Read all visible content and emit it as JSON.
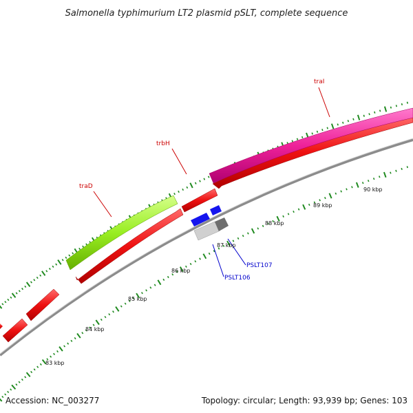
{
  "title": "Salmonella typhimurium LT2 plasmid pSLT, complete sequence",
  "footer": {
    "accession": "Accession: NC_003277",
    "summary": "Topology: circular; Length: 93,939 bp; Genes: 103"
  },
  "colors": {
    "backbone": "#8c8c8c",
    "ticks_major": "#1f8a1f",
    "ticks_minor": "#1f8a1f",
    "red_genes": "#ee1111",
    "traI": "#ee2299",
    "traD": "#99ee22",
    "pslt106": "#c8c8c8",
    "pslt107": "#1515ee",
    "feature_label": "#cc0000",
    "orf_label": "#0000cc"
  },
  "scale_labels": [
    "83 kbp",
    "84 kbp",
    "85 kbp",
    "86 kbp",
    "87 kbp",
    "88 kbp",
    "89 kbp",
    "90 kbp"
  ],
  "genes": [
    {
      "label": "traI",
      "color": "traI",
      "label_color": "feature_label",
      "start_kbp": 86.9,
      "end_kbp": 91.5,
      "strand": "outer"
    },
    {
      "label": "trbH",
      "color": "",
      "label_color": "feature_label",
      "start_kbp": 86.4,
      "end_kbp": 86.85,
      "strand": "outer"
    },
    {
      "label": "traD",
      "color": "traD",
      "label_color": "feature_label",
      "start_kbp": 84.85,
      "end_kbp": 86.35,
      "strand": "outer"
    },
    {
      "label": "PSLT106",
      "color": "pslt106",
      "label_color": "orf_label",
      "start_kbp": 86.6,
      "end_kbp": 86.95,
      "strand": "inner"
    },
    {
      "label": "PSLT107",
      "color": "pslt107",
      "label_color": "orf_label",
      "start_kbp": 86.6,
      "end_kbp": 86.95,
      "strand": "inner"
    }
  ]
}
